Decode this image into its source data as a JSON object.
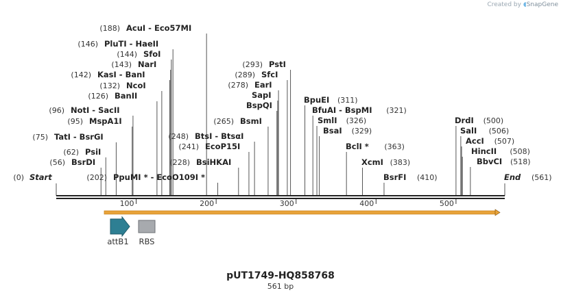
{
  "credit": {
    "prefix": "Created by",
    "brand": "SnapGene"
  },
  "plasmid": {
    "name": "pUT1749-HQ858768",
    "length_label": "561 bp",
    "length": 561
  },
  "ruler": {
    "ticks": [
      "100",
      "200",
      "300",
      "400",
      "500"
    ],
    "tick_positions": [
      100,
      200,
      300,
      400,
      500
    ]
  },
  "ends": [
    {
      "pos_label": "(0)",
      "name": "Start",
      "position": 0
    },
    {
      "pos_label": "(561)",
      "name": "End",
      "position": 561
    }
  ],
  "enzymes": [
    {
      "pos": 56,
      "label": "BsrDI",
      "pos_label": "(56)"
    },
    {
      "pos": 62,
      "label": "PsiI",
      "pos_label": "(62)"
    },
    {
      "pos": 75,
      "label": "TatI - BsrGI",
      "pos_label": "(75)"
    },
    {
      "pos": 95,
      "label": "MspA1I",
      "pos_label": "(95)"
    },
    {
      "pos": 96,
      "label": "NotI - SacII",
      "pos_label": "(96)"
    },
    {
      "pos": 126,
      "label": "BanII",
      "pos_label": "(126)"
    },
    {
      "pos": 132,
      "label": "NcoI",
      "pos_label": "(132)"
    },
    {
      "pos": 142,
      "label": "KasI - BanI",
      "pos_label": "(142)"
    },
    {
      "pos": 143,
      "label": "NarI",
      "pos_label": "(143)"
    },
    {
      "pos": 144,
      "label": "SfoI",
      "pos_label": "(144)"
    },
    {
      "pos": 146,
      "label": "PluTI - HaeII",
      "pos_label": "(146)"
    },
    {
      "pos": 188,
      "label": "AcuI - Eco57MI",
      "pos_label": "(188)"
    },
    {
      "pos": 202,
      "label": "PpuMI * - EcoO109I *",
      "pos_label": "(202)"
    },
    {
      "pos": 228,
      "label": "BsiHKAI",
      "pos_label": "(228)"
    },
    {
      "pos": 241,
      "label": "EcoP15I",
      "pos_label": "(241)"
    },
    {
      "pos": 248,
      "label": "BtsI - BtsαI",
      "pos_label": "(248)"
    },
    {
      "pos": 265,
      "label": "BsmI",
      "pos_label": "(265)"
    },
    {
      "pos": 276,
      "label": "BspQI",
      "pos_label": ""
    },
    {
      "pos": 277,
      "label": "SapI",
      "pos_label": ""
    },
    {
      "pos": 278,
      "label": "EarI",
      "pos_label": "(278)"
    },
    {
      "pos": 289,
      "label": "SfcI",
      "pos_label": "(289)"
    },
    {
      "pos": 293,
      "label": "PstI",
      "pos_label": "(293)"
    },
    {
      "pos": 311,
      "label": "BpuEI",
      "pos_label": "(311)"
    },
    {
      "pos": 321,
      "label": "BfuAI - BspMI",
      "pos_label": "(321)"
    },
    {
      "pos": 326,
      "label": "SmlI",
      "pos_label": "(326)"
    },
    {
      "pos": 329,
      "label": "BsaI",
      "pos_label": "(329)"
    },
    {
      "pos": 363,
      "label": "BclI *",
      "pos_label": "(363)"
    },
    {
      "pos": 383,
      "label": "XcmI",
      "pos_label": "(383)"
    },
    {
      "pos": 410,
      "label": "BsrFI",
      "pos_label": "(410)"
    },
    {
      "pos": 500,
      "label": "DrdI",
      "pos_label": "(500)"
    },
    {
      "pos": 506,
      "label": "SalI",
      "pos_label": "(506)"
    },
    {
      "pos": 507,
      "label": "AccI",
      "pos_label": "(507)"
    },
    {
      "pos": 508,
      "label": "HincII",
      "pos_label": "(508)"
    },
    {
      "pos": 518,
      "label": "BbvCI",
      "pos_label": "(518)"
    }
  ],
  "features": [
    {
      "name": "attB1",
      "icon": "arrow-right-icon",
      "color": "#2e7f93"
    },
    {
      "name": "RBS",
      "icon": "box-icon",
      "color": "#a7aaae"
    }
  ],
  "orf": {
    "color": "#e8a33a",
    "from": 60,
    "to": 555
  }
}
